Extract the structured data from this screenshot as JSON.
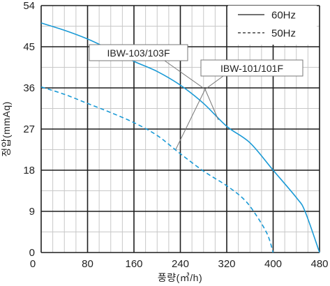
{
  "chart_data": {
    "type": "line",
    "xlabel": "풍량(㎥/h)",
    "ylabel": "정압(mmAq)",
    "xlim": [
      0,
      480
    ],
    "ylim": [
      0,
      54
    ],
    "x_ticks": [
      0,
      80,
      160,
      240,
      320,
      400,
      480
    ],
    "y_ticks": [
      0,
      9,
      18,
      27,
      36,
      45,
      54
    ],
    "x_tick_labels": [
      "0",
      "80",
      "160",
      "240",
      "320",
      "400",
      "480"
    ],
    "y_tick_labels": [
      "0",
      "9",
      "18",
      "27",
      "36",
      "45",
      "54"
    ],
    "grid": true,
    "legend_position": "top-right",
    "legend": [
      {
        "label": "60Hz",
        "style": "solid"
      },
      {
        "label": "50Hz",
        "style": "dashed"
      }
    ],
    "series": [
      {
        "style": "solid",
        "color": "#1a9ad6",
        "x": [
          0,
          40,
          80,
          120,
          160,
          200,
          240,
          280,
          320,
          360,
          400,
          440,
          455,
          480
        ],
        "y": [
          50.2,
          48.6,
          46.7,
          44.3,
          41.8,
          39.6,
          36.6,
          32.6,
          27.6,
          24,
          18,
          12,
          9,
          0
        ]
      },
      {
        "style": "dashed",
        "color": "#1a9ad6",
        "x": [
          0,
          40,
          80,
          120,
          160,
          200,
          240,
          280,
          320,
          350,
          370,
          390,
          400
        ],
        "y": [
          36.2,
          34.6,
          32.6,
          30.6,
          28.4,
          25.6,
          21.6,
          17.8,
          14.6,
          11.6,
          8.3,
          4,
          0
        ]
      }
    ],
    "annotations": [
      {
        "label": "IBW-103/103F"
      },
      {
        "label": "IBW-101/101F"
      }
    ],
    "colors": {
      "curve": "#1a9ad6",
      "grid_fine": "#c8c8c8",
      "grid_major": "#1e1e1e",
      "callout": "#777777"
    }
  }
}
